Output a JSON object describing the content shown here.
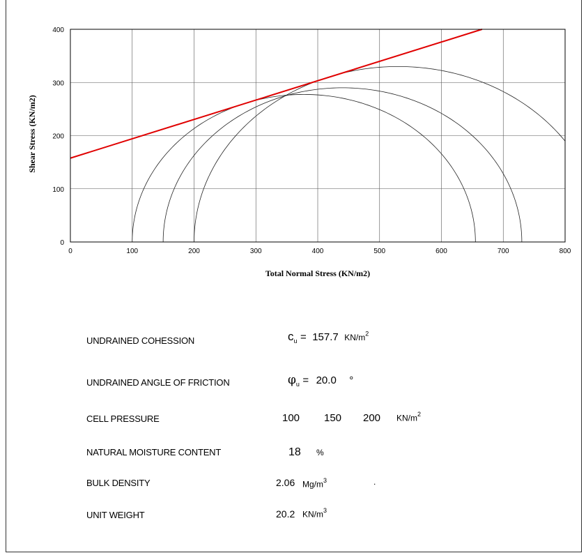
{
  "chart_data": {
    "type": "line",
    "xlabel": "Total Normal Stress (KN/m2)",
    "ylabel": "Shear Stress (KN/m2)",
    "xlim": [
      0,
      800
    ],
    "ylim": [
      0,
      400
    ],
    "xticks": [
      0,
      100,
      200,
      300,
      400,
      500,
      600,
      700,
      800
    ],
    "yticks": [
      0,
      100,
      200,
      300,
      400
    ],
    "grid": true,
    "failure_envelope": {
      "color": "#e00000",
      "intercept": 157.7,
      "angle_deg": 20.0
    },
    "mohr_circles": [
      {
        "sigma3": 100,
        "sigma1": 655
      },
      {
        "sigma3": 150,
        "sigma1": 730
      },
      {
        "sigma3": 200,
        "sigma1": 860
      }
    ]
  },
  "properties": {
    "cohesion": {
      "label": "UNDRAINED COHESSION",
      "symbol": "c",
      "sub": "u",
      "eq": "=",
      "value": "157.7",
      "unit": "KN/m",
      "unit_sup": "2"
    },
    "friction": {
      "label": "UNDRAINED ANGLE OF FRICTION",
      "symbol": "φ",
      "sub": "u",
      "eq": "=",
      "value": "20.0",
      "unit": "°"
    },
    "cell_pressure": {
      "label": "CELL PRESSURE",
      "values": [
        "100",
        "150",
        "200"
      ],
      "unit": "KN/m",
      "unit_sup": "2"
    },
    "moisture": {
      "label": "NATURAL MOISTURE CONTENT",
      "value": "18",
      "unit": "%"
    },
    "bulk_density": {
      "label": "BULK DENSITY",
      "value": "2.06",
      "unit": "Mg/m",
      "unit_sup": "3",
      "trailing": "."
    },
    "unit_weight": {
      "label": "UNIT WEIGHT",
      "value": "20.2",
      "unit": "KN/m",
      "unit_sup": "3"
    }
  }
}
